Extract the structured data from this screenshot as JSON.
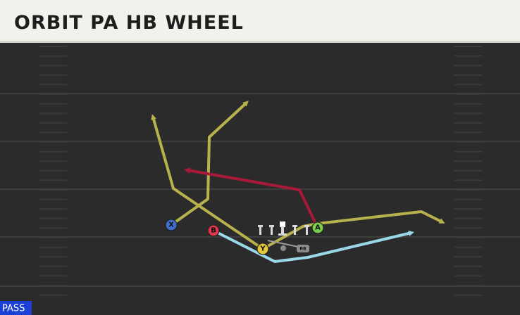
{
  "header": {
    "title": "ORBIT PA HB WHEEL"
  },
  "players": [
    {
      "label": "X"
    },
    {
      "label": "B"
    },
    {
      "label": "Y"
    },
    {
      "label": "A"
    },
    {
      "label": "RB"
    }
  ],
  "badge": {
    "label": "PASS"
  }
}
